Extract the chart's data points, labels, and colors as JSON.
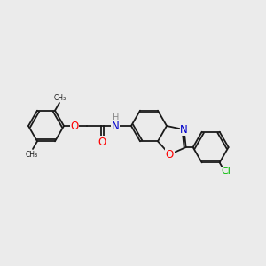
{
  "bg_color": "#ebebeb",
  "bond_color": "#1a1a1a",
  "bond_width": 1.3,
  "atom_colors": {
    "O": "#ff0000",
    "N": "#0000cc",
    "Cl": "#00bb00",
    "H": "#7a7a7a",
    "C": "#1a1a1a"
  },
  "figsize": [
    3.0,
    3.0
  ],
  "dpi": 100
}
